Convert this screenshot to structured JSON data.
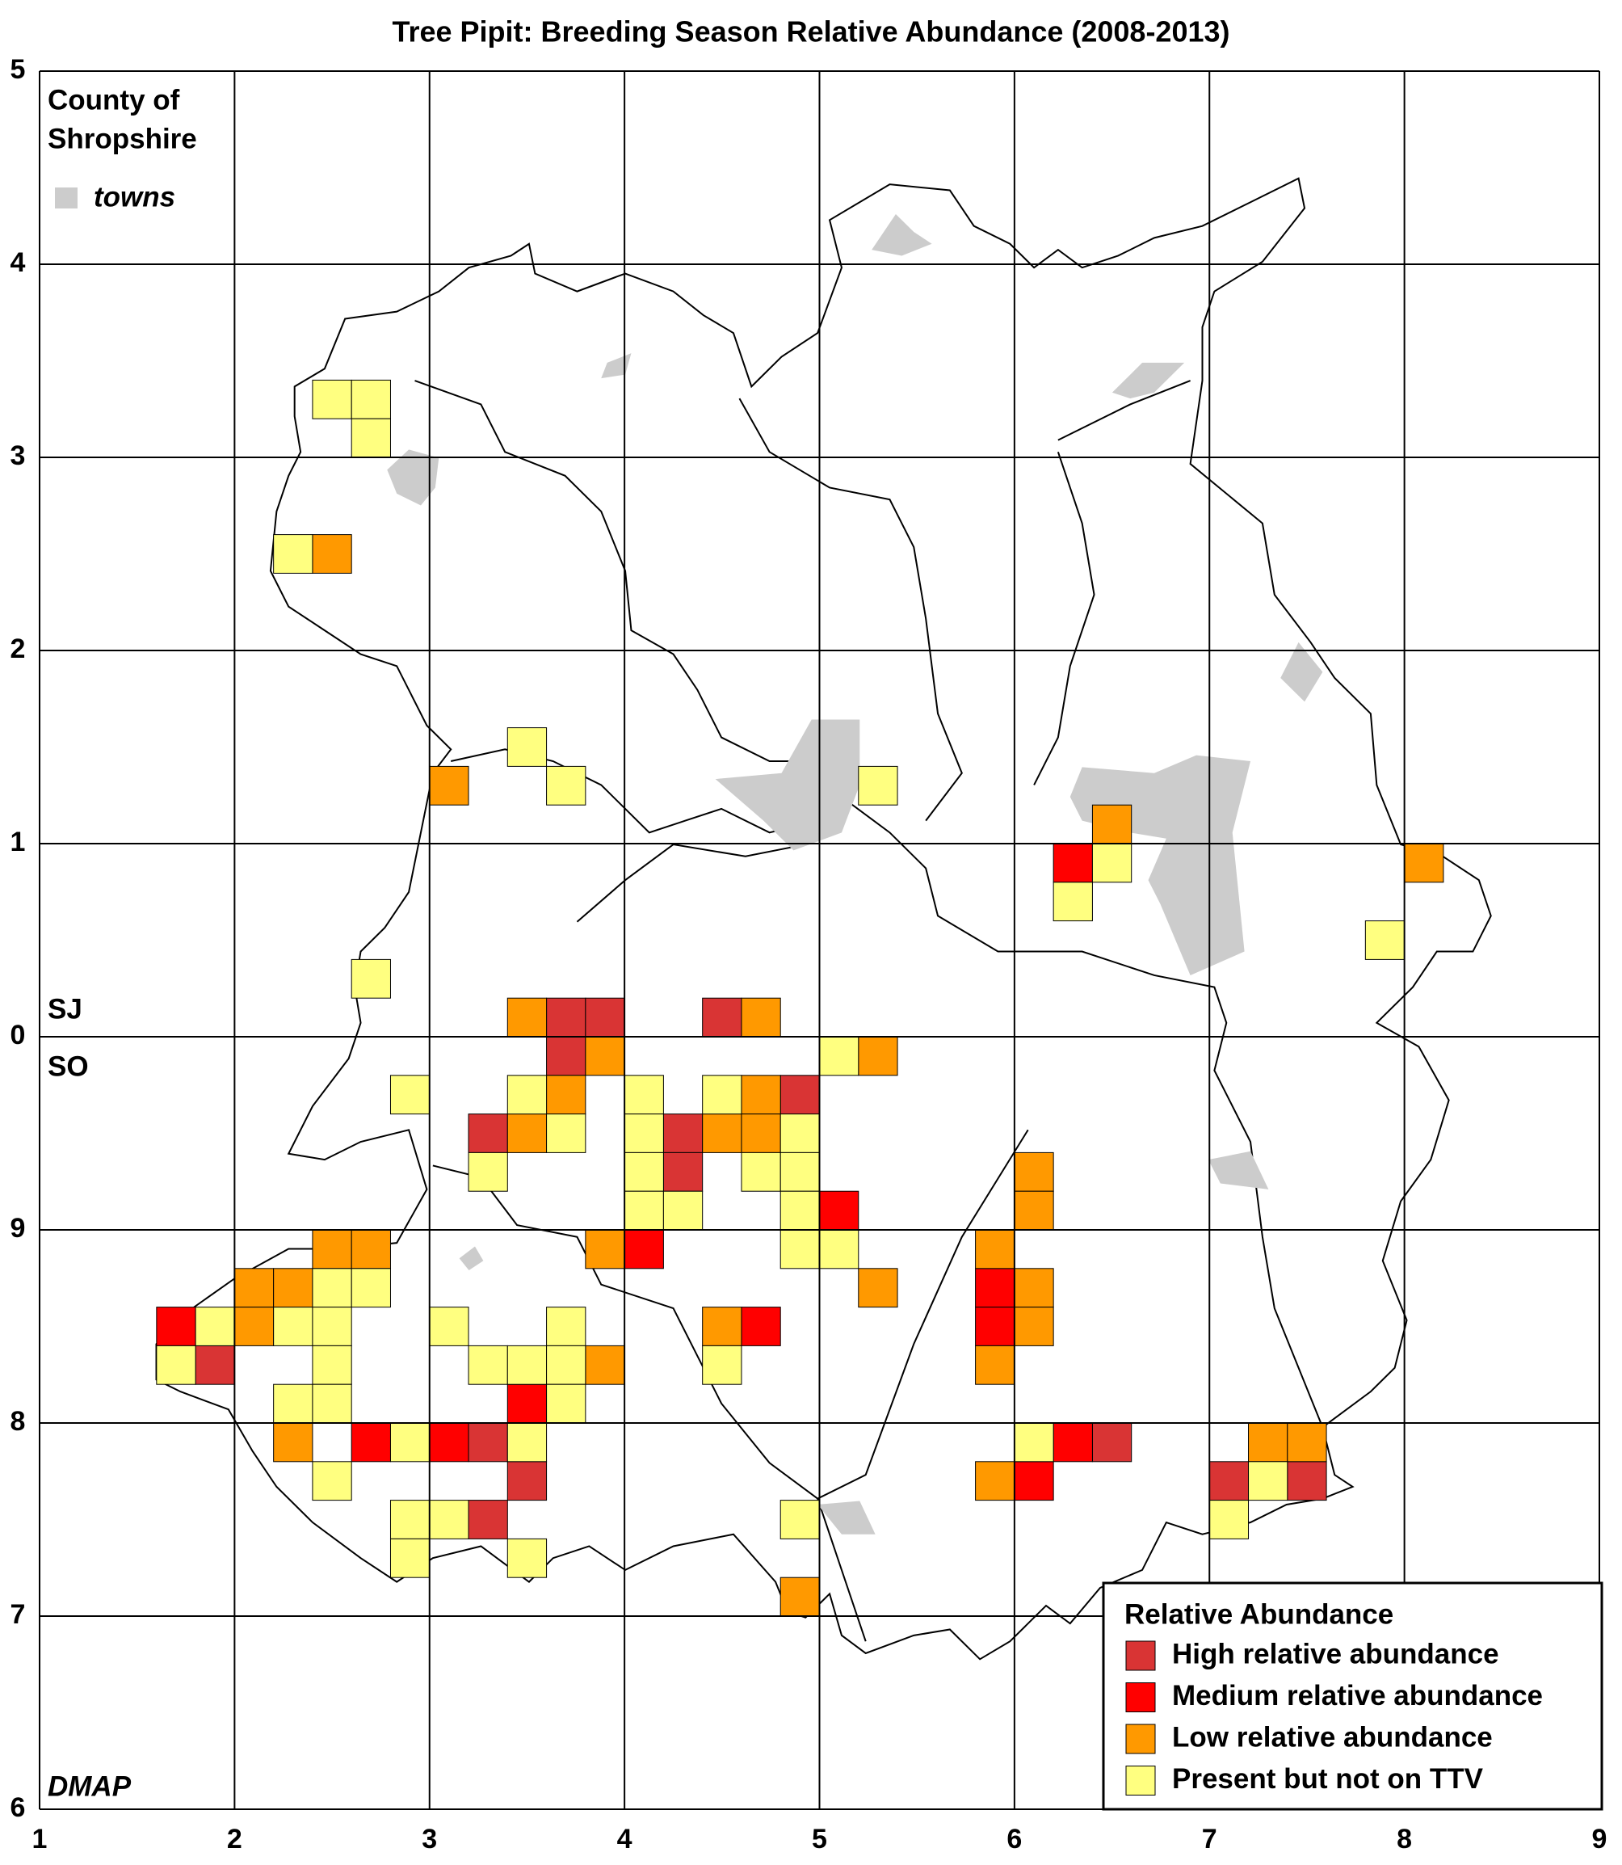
{
  "chart_data": {
    "type": "tetrad-map",
    "title": "Tree Pipit: Breeding Season Relative Abundance (2008-2013)",
    "county_label": [
      "County of",
      "Shropshire"
    ],
    "towns_label": "towns",
    "towns_color": "#cccccc",
    "grid_square_labels": [
      "SJ",
      "SO"
    ],
    "credit": "DMAP",
    "legend_title": "Relative Abundance",
    "xlim": [
      1,
      9
    ],
    "xticks": [
      1,
      2,
      3,
      4,
      5,
      6,
      7,
      8,
      9
    ],
    "ylim": [
      0,
      9
    ],
    "yticks": [
      {
        "value": 0,
        "label": "6"
      },
      {
        "value": 1,
        "label": "7"
      },
      {
        "value": 2,
        "label": "8"
      },
      {
        "value": 3,
        "label": "9"
      },
      {
        "value": 4,
        "label": "0"
      },
      {
        "value": 5,
        "label": "1"
      },
      {
        "value": 6,
        "label": "2"
      },
      {
        "value": 7,
        "label": "3"
      },
      {
        "value": 8,
        "label": "4"
      },
      {
        "value": 9,
        "label": "5"
      }
    ],
    "grid": true,
    "series": [
      {
        "name": "High relative abundance",
        "color": "#d93434",
        "x": [
          3.6,
          3.8,
          4.4,
          3.6,
          4.8,
          3.2,
          4.2,
          4.2,
          1.8,
          3.2,
          6.4,
          3.4,
          7.0,
          7.4,
          3.2
        ],
        "y": [
          4.0,
          4.0,
          4.0,
          3.8,
          3.6,
          3.4,
          3.4,
          3.2,
          2.2,
          1.8,
          1.8,
          1.6,
          1.6,
          1.6,
          1.4
        ]
      },
      {
        "name": "Medium relative abundance",
        "color": "#ff0000",
        "x": [
          6.2,
          5.0,
          4.0,
          5.8,
          1.6,
          4.6,
          5.8,
          3.4,
          2.6,
          3.0,
          6.2,
          6.0
        ],
        "y": [
          4.8,
          3.0,
          2.8,
          2.6,
          2.4,
          2.4,
          2.4,
          2.0,
          1.8,
          1.8,
          1.8,
          1.6
        ]
      },
      {
        "name": "Low relative abundance",
        "color": "#ff9900",
        "x": [
          2.4,
          3.0,
          6.4,
          8.0,
          3.4,
          4.6,
          3.8,
          5.2,
          3.6,
          4.6,
          3.4,
          4.4,
          4.6,
          6.0,
          6.0,
          2.4,
          2.6,
          3.8,
          5.8,
          2.0,
          2.2,
          5.2,
          6.0,
          2.0,
          4.4,
          6.0,
          3.8,
          5.8,
          2.2,
          7.2,
          7.4,
          5.8,
          4.8
        ],
        "y": [
          6.4,
          5.2,
          5.0,
          4.8,
          4.0,
          4.0,
          3.8,
          3.8,
          3.6,
          3.6,
          3.4,
          3.4,
          3.4,
          3.2,
          3.0,
          2.8,
          2.8,
          2.8,
          2.8,
          2.6,
          2.6,
          2.6,
          2.6,
          2.4,
          2.4,
          2.4,
          2.2,
          2.2,
          1.8,
          1.8,
          1.8,
          1.6,
          1.0
        ]
      },
      {
        "name": "Present but not on TTV",
        "color": "#ffff80",
        "x": [
          2.4,
          2.6,
          2.6,
          2.2,
          3.4,
          3.6,
          5.2,
          6.4,
          6.2,
          7.8,
          2.6,
          5.0,
          2.8,
          3.4,
          4.0,
          4.4,
          3.6,
          4.0,
          4.8,
          3.2,
          4.0,
          4.6,
          4.8,
          4.0,
          4.2,
          4.8,
          4.8,
          5.0,
          2.4,
          2.6,
          1.8,
          2.2,
          2.4,
          3.0,
          3.6,
          1.6,
          2.4,
          3.2,
          3.4,
          3.6,
          4.4,
          2.2,
          2.4,
          3.6,
          2.8,
          3.4,
          6.0,
          2.4,
          7.2,
          2.8,
          3.0,
          4.8,
          7.0,
          2.8,
          3.4
        ],
        "y": [
          7.2,
          7.2,
          7.0,
          6.4,
          5.4,
          5.2,
          5.2,
          4.8,
          4.6,
          4.4,
          4.2,
          3.8,
          3.6,
          3.6,
          3.6,
          3.6,
          3.4,
          3.4,
          3.4,
          3.2,
          3.2,
          3.2,
          3.2,
          3.0,
          3.0,
          3.0,
          2.8,
          2.8,
          2.6,
          2.6,
          2.4,
          2.4,
          2.4,
          2.4,
          2.4,
          2.2,
          2.2,
          2.2,
          2.2,
          2.2,
          2.2,
          2.0,
          2.0,
          2.0,
          1.8,
          1.8,
          1.8,
          1.6,
          1.6,
          1.4,
          1.4,
          1.4,
          1.4,
          1.2,
          1.2
        ]
      }
    ]
  }
}
